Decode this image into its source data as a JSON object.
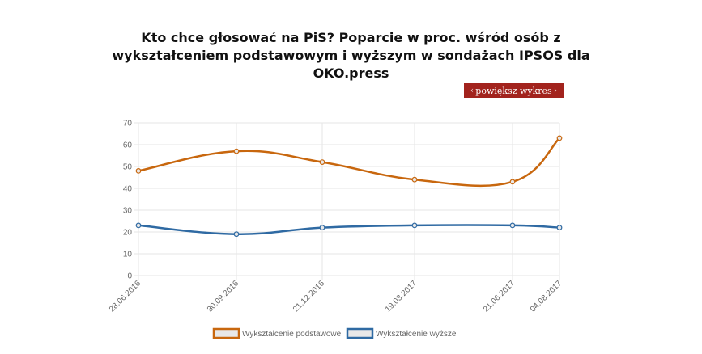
{
  "title": "Kto chce głosować na PiS? Poparcie w proc. wśród osób z wykształceniem podstawowym i wyższym w sondażach IPSOS dla OKO.press",
  "enlarge_button": {
    "label": "powiększ wykres",
    "left_icon": "chevron-left-icon",
    "right_icon": "chevron-right-icon"
  },
  "colors": {
    "series1": "#c8670e",
    "series2": "#2f6aa3",
    "grid": "#e6e6e6",
    "button": "#a2231d"
  },
  "chart_data": {
    "type": "line",
    "categories": [
      "28.06.2016",
      "30.09.2016",
      "21.12.2016",
      "19.03.2017",
      "21.06.2017",
      "04.08.2017"
    ],
    "ylim": [
      0,
      70
    ],
    "yticks": [
      0,
      10,
      20,
      30,
      40,
      50,
      60,
      70
    ],
    "grid": true,
    "legend_position": "bottom",
    "series": [
      {
        "name": "Wykształcenie podstawowe",
        "values": [
          48,
          57,
          52,
          44,
          43,
          63
        ]
      },
      {
        "name": "Wykształcenie wyższe",
        "values": [
          23,
          19,
          22,
          23,
          23,
          22
        ]
      }
    ]
  }
}
